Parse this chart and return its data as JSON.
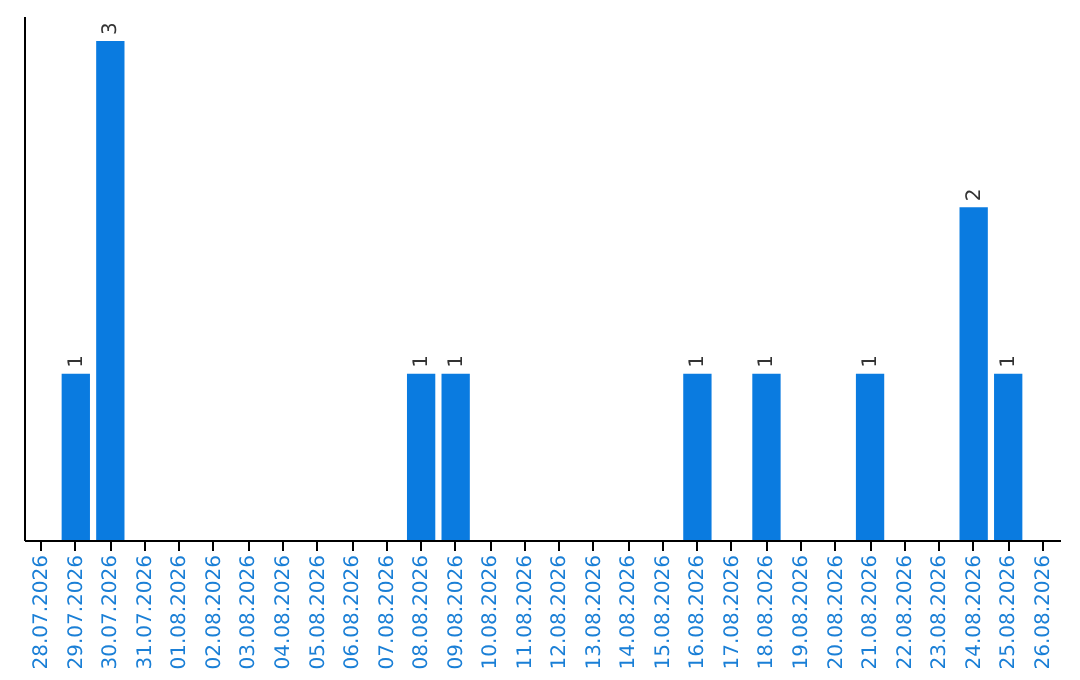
{
  "chart_data": {
    "type": "bar",
    "categories": [
      "28.07.2026",
      "29.07.2026",
      "30.07.2026",
      "31.07.2026",
      "01.08.2026",
      "02.08.2026",
      "03.08.2026",
      "04.08.2026",
      "05.08.2026",
      "06.08.2026",
      "07.08.2026",
      "08.08.2026",
      "09.08.2026",
      "10.08.2026",
      "11.08.2026",
      "12.08.2026",
      "13.08.2026",
      "14.08.2026",
      "15.08.2026",
      "16.08.2026",
      "17.08.2026",
      "18.08.2026",
      "19.08.2026",
      "20.08.2026",
      "21.08.2026",
      "22.08.2026",
      "23.08.2026",
      "24.08.2026",
      "25.08.2026",
      "26.08.2026"
    ],
    "values": [
      null,
      1,
      3,
      null,
      null,
      null,
      null,
      null,
      null,
      null,
      null,
      1,
      1,
      null,
      null,
      null,
      null,
      null,
      null,
      1,
      null,
      1,
      null,
      null,
      1,
      null,
      null,
      2,
      1,
      null
    ],
    "color": "#0a7be0",
    "ylim": [
      0,
      3.15
    ],
    "data_labels": true,
    "grid": false,
    "tick_labels": "x"
  }
}
